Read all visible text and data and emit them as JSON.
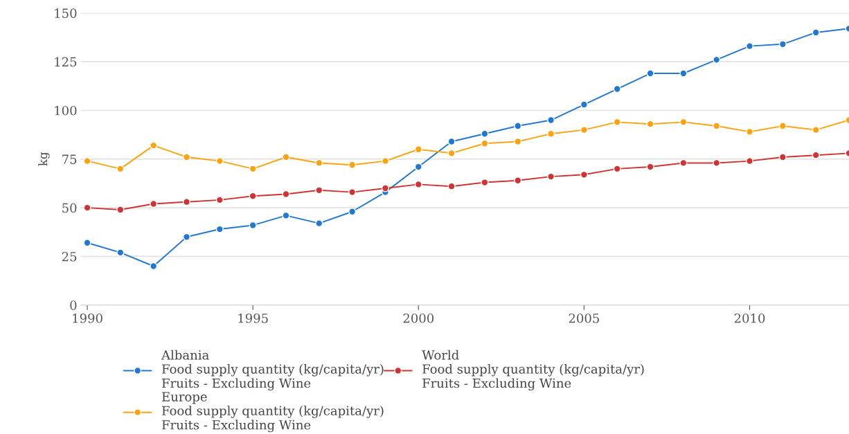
{
  "chart_data": {
    "type": "line",
    "ylabel": "kg",
    "x": [
      1990,
      1991,
      1992,
      1993,
      1994,
      1995,
      1996,
      1997,
      1998,
      1999,
      2000,
      2001,
      2002,
      2003,
      2004,
      2005,
      2006,
      2007,
      2008,
      2009,
      2010,
      2011,
      2012,
      2013
    ],
    "series": [
      {
        "name": "Albania\nFood supply quantity (kg/capita/yr)\nFruits - Excluding Wine",
        "color": "#2077d4",
        "values": [
          32,
          27,
          20,
          35,
          39,
          41,
          46,
          42,
          48,
          58,
          71,
          84,
          88,
          92,
          95,
          103,
          111,
          119,
          119,
          126,
          133,
          134,
          140,
          142
        ]
      },
      {
        "name": "Europe\nFood supply quantity (kg/capita/yr)\nFruits - Excluding Wine",
        "color": "#ffa20e",
        "values": [
          74,
          70,
          82,
          76,
          74,
          70,
          76,
          73,
          72,
          74,
          80,
          78,
          83,
          84,
          88,
          90,
          94,
          93,
          94,
          92,
          89,
          92,
          90,
          95
        ]
      },
      {
        "name": "World\nFood supply quantity (kg/capita/yr)\nFruits - Excluding Wine",
        "color": "#d23232",
        "values": [
          50,
          49,
          52,
          53,
          54,
          56,
          57,
          59,
          58,
          60,
          62,
          61,
          63,
          64,
          66,
          67,
          70,
          71,
          73,
          73,
          74,
          76,
          77,
          78
        ]
      }
    ],
    "xlim": [
      1989.8,
      2013
    ],
    "xticks": [
      1990,
      1995,
      2000,
      2005,
      2010
    ],
    "ylim": [
      0,
      150
    ],
    "yticks": [
      0,
      25,
      50,
      75,
      100,
      125,
      150
    ],
    "grid": "y",
    "legend": "bottom",
    "marker": "circle",
    "line_style": "solid"
  }
}
